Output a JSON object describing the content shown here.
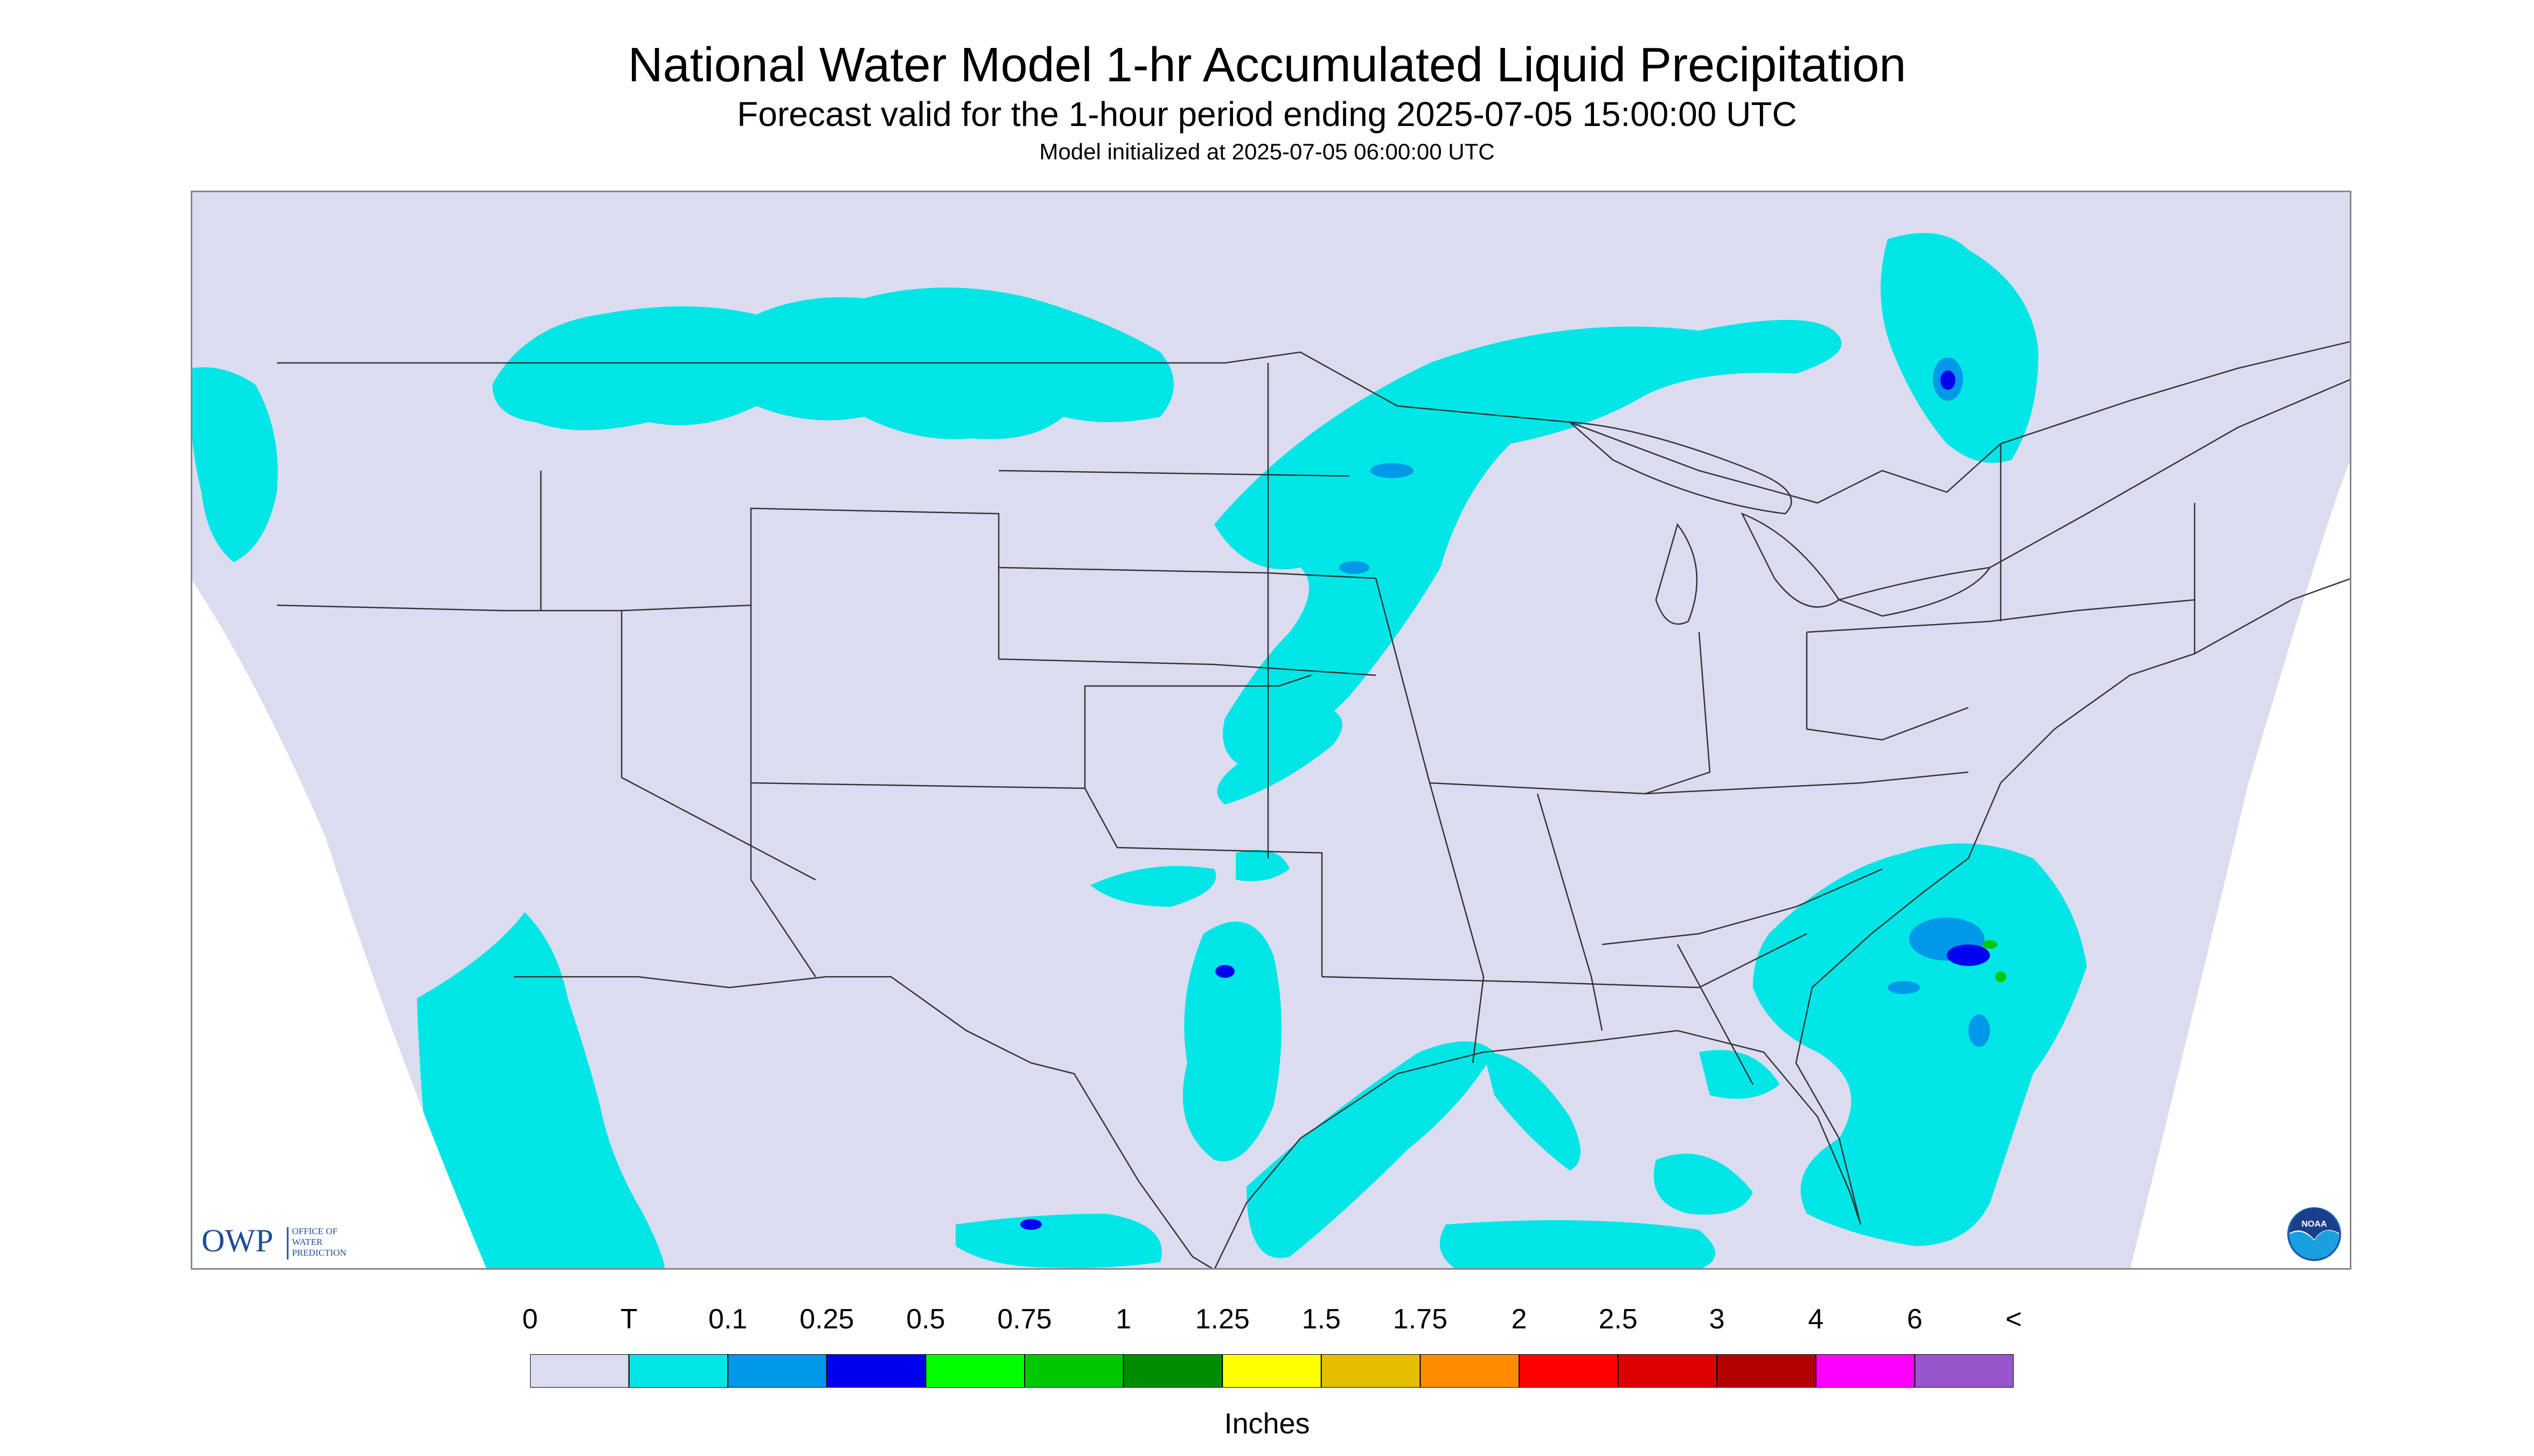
{
  "header": {
    "title": "National Water Model 1-hr Accumulated Liquid Precipitation",
    "subtitle": "Forecast valid for the 1-hour period ending 2025-07-05 15:00:00 UTC",
    "init": "Model initialized at 2025-07-05 06:00:00 UTC"
  },
  "logos": {
    "owp_mark": "OWP",
    "owp_line1": "OFFICE OF",
    "owp_line2": "WATER",
    "owp_line3": "PREDICTION",
    "noaa_mark": "NOAA"
  },
  "legend": {
    "units": "Inches",
    "labels": [
      "0",
      "T",
      "0.1",
      "0.25",
      "0.5",
      "0.75",
      "1",
      "1.25",
      "1.5",
      "1.75",
      "2",
      "2.5",
      "3",
      "4",
      "6",
      "<"
    ],
    "colors": [
      "#dcdcf0",
      "#00e6e6",
      "#0098e8",
      "#0000f0",
      "#00ff00",
      "#00c800",
      "#008c00",
      "#ffff00",
      "#e6be00",
      "#ff8c00",
      "#ff0000",
      "#dc0000",
      "#b40000",
      "#ff00ff",
      "#9955cc"
    ]
  },
  "colors": {
    "no_data": "#ffffff",
    "no_precip": "#dcdcf0",
    "trace": "#00e6e6",
    "light_blue": "#0098e8",
    "blue": "#0000f0",
    "green": "#00ff00",
    "border": "#333333"
  }
}
